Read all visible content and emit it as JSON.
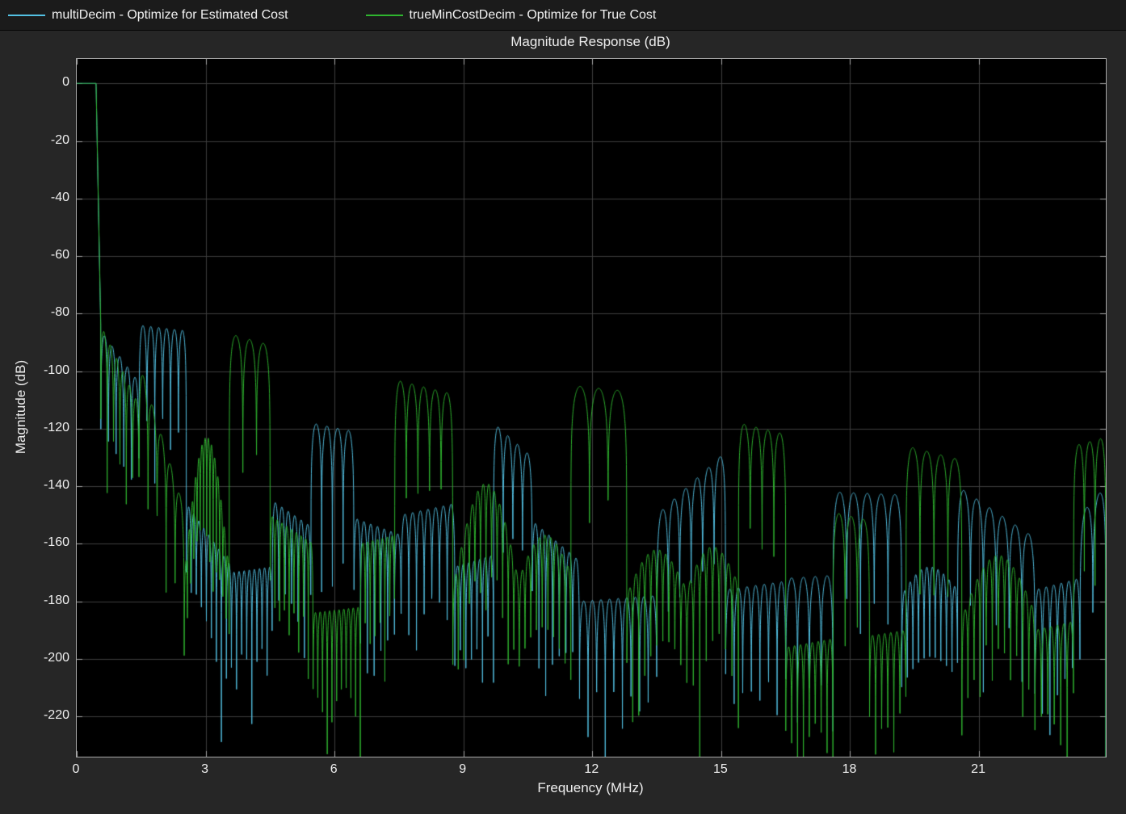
{
  "legend": {
    "entries": [
      {
        "label": "multiDecim - Optimize for Estimated Cost",
        "color": "#53C1E3"
      },
      {
        "label": "trueMinCostDecim - Optimize for True Cost",
        "color": "#2FB52F"
      }
    ]
  },
  "chart_data": {
    "type": "line",
    "title": "Magnitude Response (dB)",
    "xlabel": "Frequency (MHz)",
    "ylabel": "Magnitude (dB)",
    "xlim": [
      0,
      23.95
    ],
    "ylim": [
      -234,
      8.5
    ],
    "xticks": [
      0,
      3,
      6,
      9,
      12,
      15,
      18,
      21
    ],
    "yticks": [
      0,
      -20,
      -40,
      -60,
      -80,
      -100,
      -120,
      -140,
      -160,
      -180,
      -200,
      -220
    ],
    "grid": true,
    "legend_position": "top",
    "background": "#000000",
    "figure_background": "#262626",
    "grid_color": "#3E3E3E",
    "axis_color": "#A8A8A8",
    "tick_color": "#A8A8A8",
    "text_color": "#EFEFEF",
    "series": [
      {
        "name": "multiDecim - Optimize for Estimated Cost",
        "color": "#53C1E3",
        "description": "Decimator magnitude response: 0 dB passband to ~0.45 MHz, stopband sidelobe clusters read from plot (peak dB envelopes per frequency band).",
        "segments": [
          {
            "f0": 0,
            "f1": 0.45,
            "shape": "flat",
            "p0": 0,
            "p1": 0
          },
          {
            "f0": 0.45,
            "f1": 0.56,
            "shape": "drop",
            "p0": 0,
            "p1": -86
          },
          {
            "f0": 0.56,
            "f1": 1.45,
            "shape": "comb",
            "n": 5,
            "p0": -86,
            "p1": -104
          },
          {
            "f0": 1.45,
            "f1": 2.55,
            "shape": "comb",
            "n": 6,
            "p0": -84,
            "p1": -86
          },
          {
            "f0": 2.55,
            "f1": 3.6,
            "shape": "comb",
            "n": 9,
            "p0": -146,
            "p1": -168
          },
          {
            "f0": 3.6,
            "f1": 4.55,
            "shape": "comb",
            "n": 8,
            "p0": -170,
            "p1": -168
          },
          {
            "f0": 4.55,
            "f1": 5.45,
            "shape": "comb",
            "n": 6,
            "p0": -145,
            "p1": -154
          },
          {
            "f0": 5.45,
            "f1": 6.45,
            "shape": "comb",
            "n": 4,
            "p0": -118,
            "p1": -121
          },
          {
            "f0": 6.45,
            "f1": 7.55,
            "shape": "comb",
            "n": 7,
            "p0": -151,
            "p1": -157
          },
          {
            "f0": 7.55,
            "f1": 8.8,
            "shape": "comb",
            "n": 7,
            "p0": -150,
            "p1": -146
          },
          {
            "f0": 8.8,
            "f1": 9.7,
            "shape": "comb",
            "n": 7,
            "p0": -168,
            "p1": -164
          },
          {
            "f0": 9.7,
            "f1": 10.6,
            "shape": "comb",
            "n": 4,
            "p0": -118,
            "p1": -130
          },
          {
            "f0": 10.6,
            "f1": 11.7,
            "shape": "comb",
            "n": 7,
            "p0": -152,
            "p1": -166
          },
          {
            "f0": 11.7,
            "f1": 13.5,
            "shape": "comb",
            "n": 9,
            "p0": -180,
            "p1": -178
          },
          {
            "f0": 13.5,
            "f1": 15.1,
            "shape": "comb",
            "n": 6,
            "p0": -150,
            "p1": -128
          },
          {
            "f0": 15.1,
            "f1": 16.5,
            "shape": "comb",
            "n": 7,
            "p0": -176,
            "p1": -173
          },
          {
            "f0": 16.5,
            "f1": 17.6,
            "shape": "comb",
            "n": 4,
            "p0": -172,
            "p1": -171
          },
          {
            "f0": 17.6,
            "f1": 19.2,
            "shape": "comb",
            "n": 5,
            "p0": -142,
            "p1": -143
          },
          {
            "f0": 19.2,
            "f1": 20.5,
            "shape": "arc",
            "n": 10,
            "p0": -178,
            "p1": -176,
            "peak": -168
          },
          {
            "f0": 20.5,
            "f1": 22.3,
            "shape": "comb",
            "n": 6,
            "p0": -140,
            "p1": -158
          },
          {
            "f0": 22.3,
            "f1": 23.35,
            "shape": "comb",
            "n": 6,
            "p0": -176,
            "p1": -172
          },
          {
            "f0": 23.35,
            "f1": 23.95,
            "shape": "comb",
            "n": 2,
            "p0": -150,
            "p1": -140
          }
        ]
      },
      {
        "name": "trueMinCostDecim - Optimize for True Cost",
        "color": "#2FB52F",
        "description": "Decimator magnitude response: 0 dB passband to ~0.45 MHz, stopband sidelobe clusters read from plot (peak dB envelopes per frequency band).",
        "segments": [
          {
            "f0": 0,
            "f1": 0.45,
            "shape": "flat",
            "p0": 0,
            "p1": 0
          },
          {
            "f0": 0.45,
            "f1": 0.56,
            "shape": "drop",
            "p0": 0,
            "p1": -84
          },
          {
            "f0": 0.56,
            "f1": 1.45,
            "shape": "comb",
            "n": 6,
            "p0": -84,
            "p1": -112
          },
          {
            "f0": 1.45,
            "f1": 2.5,
            "shape": "comb",
            "n": 5,
            "p0": -97,
            "p1": -148
          },
          {
            "f0": 2.5,
            "f1": 3.55,
            "shape": "arc",
            "n": 14,
            "p0": -172,
            "p1": -170,
            "peak": -123
          },
          {
            "f0": 3.55,
            "f1": 4.5,
            "shape": "comb",
            "n": 3,
            "p0": -87,
            "p1": -91
          },
          {
            "f0": 4.5,
            "f1": 5.5,
            "shape": "comb",
            "n": 9,
            "p0": -150,
            "p1": -160
          },
          {
            "f0": 5.5,
            "f1": 6.6,
            "shape": "comb",
            "n": 10,
            "p0": -184,
            "p1": -182
          },
          {
            "f0": 6.6,
            "f1": 7.4,
            "shape": "comb",
            "n": 7,
            "p0": -160,
            "p1": -157
          },
          {
            "f0": 7.4,
            "f1": 8.75,
            "shape": "comb",
            "n": 5,
            "p0": -103,
            "p1": -108
          },
          {
            "f0": 8.75,
            "f1": 10.3,
            "shape": "arc",
            "n": 12,
            "p0": -176,
            "p1": -174,
            "peak": -139
          },
          {
            "f0": 10.3,
            "f1": 11.5,
            "shape": "arc",
            "n": 9,
            "p0": -172,
            "p1": -170,
            "peak": -157
          },
          {
            "f0": 11.5,
            "f1": 12.8,
            "shape": "comb",
            "n": 3,
            "p0": -105,
            "p1": -107
          },
          {
            "f0": 12.8,
            "f1": 14.2,
            "shape": "arc",
            "n": 10,
            "p0": -178,
            "p1": -176,
            "peak": -162
          },
          {
            "f0": 14.2,
            "f1": 15.4,
            "shape": "arc",
            "n": 8,
            "p0": -176,
            "p1": -174,
            "peak": -161
          },
          {
            "f0": 15.4,
            "f1": 16.5,
            "shape": "comb",
            "n": 4,
            "p0": -118,
            "p1": -122
          },
          {
            "f0": 16.5,
            "f1": 17.6,
            "shape": "comb",
            "n": 8,
            "p0": -196,
            "p1": -193
          },
          {
            "f0": 17.6,
            "f1": 18.45,
            "shape": "comb",
            "n": 3,
            "p0": -149,
            "p1": -152
          },
          {
            "f0": 18.45,
            "f1": 19.3,
            "shape": "comb",
            "n": 6,
            "p0": -192,
            "p1": -190
          },
          {
            "f0": 19.3,
            "f1": 20.6,
            "shape": "comb",
            "n": 4,
            "p0": -126,
            "p1": -131
          },
          {
            "f0": 20.6,
            "f1": 22.3,
            "shape": "arc",
            "n": 12,
            "p0": -186,
            "p1": -184,
            "peak": -164
          },
          {
            "f0": 22.3,
            "f1": 23.2,
            "shape": "comb",
            "n": 6,
            "p0": -190,
            "p1": -187
          },
          {
            "f0": 23.2,
            "f1": 23.95,
            "shape": "comb",
            "n": 3,
            "p0": -126,
            "p1": -123
          }
        ]
      }
    ]
  }
}
